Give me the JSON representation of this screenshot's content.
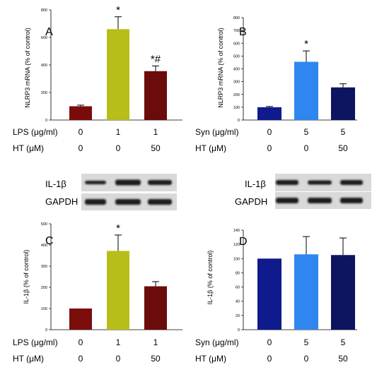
{
  "chart_data": [
    {
      "panel": "A",
      "type": "bar",
      "ylabel": "NLRP3 mRNA (% of control)",
      "ylim": [
        0,
        800
      ],
      "yticks": [
        0,
        200,
        400,
        600,
        800
      ],
      "values": [
        100,
        660,
        355
      ],
      "errors": [
        8,
        90,
        38
      ],
      "colors": [
        "#7b0c0c",
        "#b8be19",
        "#6b0b0b"
      ],
      "significance": [
        "",
        "*",
        "*#"
      ],
      "treatment_rows": [
        {
          "label": "LPS (μg/ml)",
          "values": [
            "0",
            "1",
            "1"
          ]
        },
        {
          "label": "HT  (μM)",
          "values": [
            "0",
            "0",
            "50"
          ]
        }
      ]
    },
    {
      "panel": "B",
      "type": "bar",
      "ylabel": "NLRP3 mRNA (% of control)",
      "ylim": [
        0,
        800
      ],
      "yticks": [
        0,
        100,
        200,
        300,
        400,
        500,
        600,
        700,
        800
      ],
      "values": [
        100,
        455,
        255
      ],
      "errors": [
        6,
        85,
        28
      ],
      "colors": [
        "#0f1a8c",
        "#2f86ee",
        "#0d1560"
      ],
      "significance": [
        "",
        "*",
        ""
      ],
      "treatment_rows": [
        {
          "label": "Syn (μg/ml)",
          "values": [
            "0",
            "5",
            "5"
          ]
        },
        {
          "label": "HT  (μM)",
          "values": [
            "0",
            "0",
            "50"
          ]
        }
      ]
    },
    {
      "panel": "C",
      "type": "bar",
      "ylabel": "IL-1β (% of control)",
      "ylim": [
        0,
        500
      ],
      "yticks": [
        0,
        100,
        200,
        300,
        400,
        500
      ],
      "values": [
        100,
        372,
        205
      ],
      "errors": [
        0,
        75,
        22
      ],
      "colors": [
        "#7b0c0c",
        "#b8be19",
        "#6b0b0b"
      ],
      "significance": [
        "",
        "*",
        ""
      ],
      "treatment_rows": [
        {
          "label": "LPS (μg/ml)",
          "values": [
            "0",
            "1",
            "1"
          ]
        },
        {
          "label": "HT  (μM)",
          "values": [
            "0",
            "0",
            "50"
          ]
        }
      ]
    },
    {
      "panel": "D",
      "type": "bar",
      "ylabel": "IL-1β (% of control)",
      "ylim": [
        0,
        140
      ],
      "yticks": [
        0,
        20,
        40,
        60,
        80,
        100,
        120,
        140
      ],
      "values": [
        100,
        106,
        105
      ],
      "errors": [
        0,
        25,
        24
      ],
      "colors": [
        "#0f1a8c",
        "#2f86ee",
        "#0d1560"
      ],
      "significance": [
        "",
        "",
        ""
      ],
      "treatment_rows": [
        {
          "label": "Syn (μg/ml)",
          "values": [
            "0",
            "5",
            "5"
          ]
        },
        {
          "label": "HT  (μM)",
          "values": [
            "0",
            "0",
            "50"
          ]
        }
      ]
    }
  ],
  "blots": [
    {
      "labels": [
        "IL-1β",
        "GAPDH"
      ]
    },
    {
      "labels": [
        "IL-1β",
        "GAPDH"
      ]
    }
  ]
}
